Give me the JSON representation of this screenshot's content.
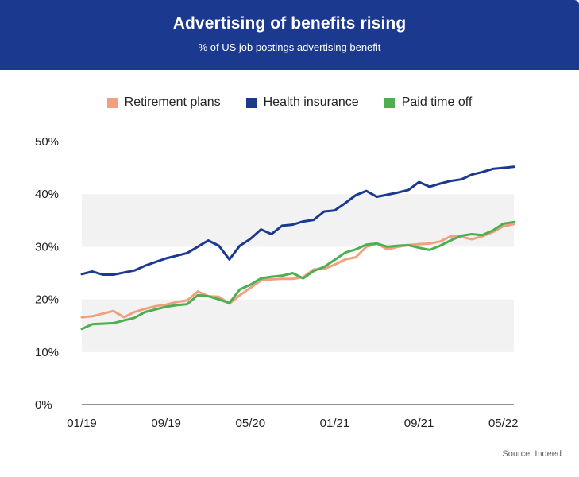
{
  "header": {
    "title": "Advertising of benefits rising",
    "subtitle": "% of US job postings advertising benefit"
  },
  "source": "Source: Indeed",
  "colors": {
    "header_bg": "#1b3a8f",
    "retirement": "#f0a07e",
    "health": "#1b3a8f",
    "pto": "#4caf50",
    "band": "#f2f2f2"
  },
  "chart_data": {
    "type": "line",
    "title": "Advertising of benefits rising",
    "subtitle": "% of US job postings advertising benefit",
    "xlabel": "",
    "ylabel": "",
    "ylim": [
      0,
      50
    ],
    "y_ticks": [
      "0%",
      "10%",
      "20%",
      "30%",
      "40%",
      "50%"
    ],
    "x_tick_labels": [
      "01/19",
      "09/19",
      "05/20",
      "01/21",
      "09/21",
      "05/22"
    ],
    "legend_position": "top-center",
    "x": [
      "01/19",
      "02/19",
      "03/19",
      "04/19",
      "05/19",
      "06/19",
      "07/19",
      "08/19",
      "09/19",
      "10/19",
      "11/19",
      "12/19",
      "01/20",
      "02/20",
      "03/20",
      "04/20",
      "05/20",
      "06/20",
      "07/20",
      "08/20",
      "09/20",
      "10/20",
      "11/20",
      "12/20",
      "01/21",
      "02/21",
      "03/21",
      "04/21",
      "05/21",
      "06/21",
      "07/21",
      "08/21",
      "09/21",
      "10/21",
      "11/21",
      "12/21",
      "01/22",
      "02/22",
      "03/22",
      "04/22",
      "05/22",
      "06/22"
    ],
    "series": [
      {
        "name": "Retirement plans",
        "values": [
          16.6,
          16.8,
          17.3,
          17.8,
          16.6,
          17.6,
          18.2,
          18.7,
          19.0,
          19.5,
          19.8,
          21.5,
          20.6,
          20.5,
          19.2,
          20.8,
          22.2,
          23.6,
          23.8,
          23.9,
          23.9,
          24.2,
          25.7,
          25.8,
          26.6,
          27.6,
          28.0,
          30.0,
          30.6,
          29.5,
          30.0,
          30.3,
          30.5,
          30.6,
          31.0,
          32.0,
          31.9,
          31.4,
          32.0,
          32.8,
          33.9,
          34.3
        ]
      },
      {
        "name": "Health insurance",
        "values": [
          24.8,
          25.3,
          24.7,
          24.7,
          25.1,
          25.5,
          26.4,
          27.1,
          27.8,
          28.3,
          28.8,
          30.0,
          31.2,
          30.2,
          27.6,
          30.2,
          31.5,
          33.3,
          32.4,
          34.0,
          34.2,
          34.8,
          35.1,
          36.7,
          36.9,
          38.3,
          39.8,
          40.6,
          39.5,
          39.9,
          40.3,
          40.8,
          42.3,
          41.4,
          42.0,
          42.5,
          42.8,
          43.7,
          44.2,
          44.8,
          45.0,
          45.2
        ]
      },
      {
        "name": "Paid time off",
        "values": [
          14.4,
          15.3,
          15.4,
          15.5,
          16.0,
          16.5,
          17.6,
          18.1,
          18.6,
          18.9,
          19.1,
          20.8,
          20.6,
          20.0,
          19.3,
          21.9,
          22.8,
          24.0,
          24.3,
          24.5,
          25.0,
          24.0,
          25.4,
          26.2,
          27.5,
          28.9,
          29.5,
          30.4,
          30.6,
          30.0,
          30.2,
          30.3,
          29.8,
          29.4,
          30.2,
          31.2,
          32.1,
          32.4,
          32.2,
          33.1,
          34.4,
          34.7
        ]
      }
    ]
  }
}
